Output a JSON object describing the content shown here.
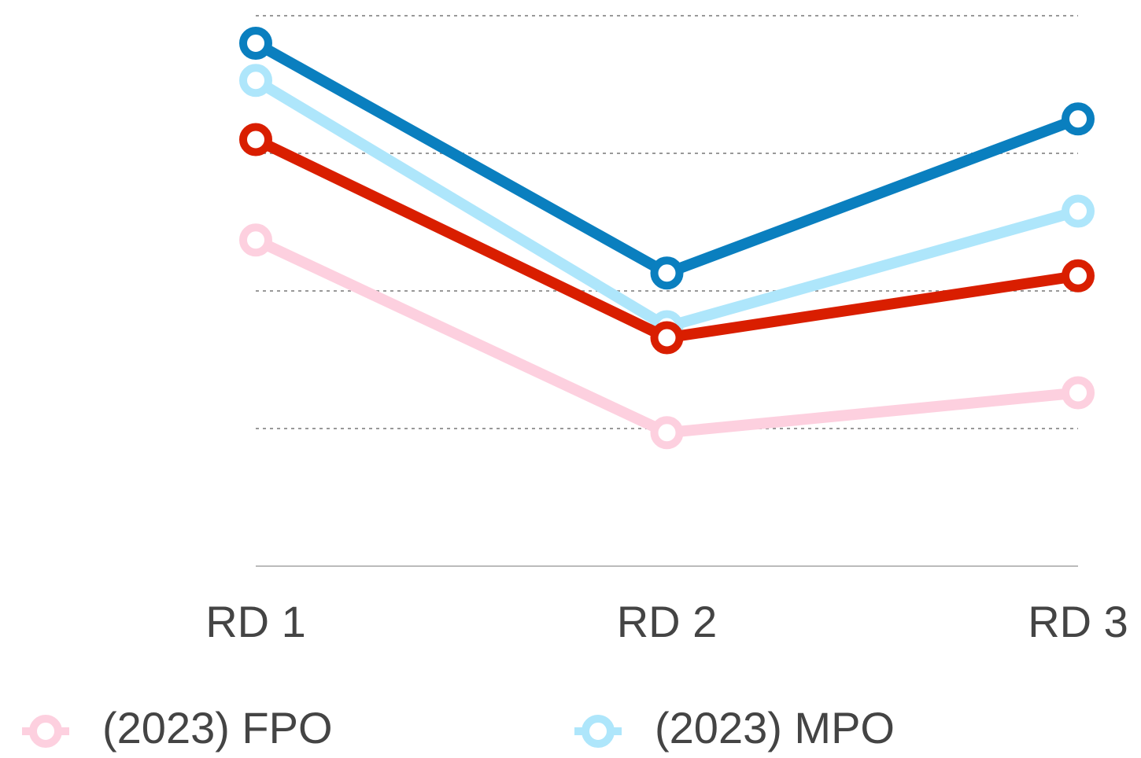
{
  "chart_data": {
    "type": "line",
    "categories": [
      "RD 1",
      "RD 2",
      "RD 3"
    ],
    "series": [
      {
        "name": "(2023) FPO",
        "color": "#fdd0df",
        "values": [
          2.37,
          0.97,
          1.26
        ]
      },
      {
        "name": "(2023) MPO",
        "color": "#aee6fb",
        "values": [
          3.53,
          1.74,
          2.58
        ]
      },
      {
        "color": "#d91e00",
        "values": [
          3.1,
          1.66,
          2.11
        ]
      },
      {
        "color": "#0a7fbf",
        "values": [
          3.8,
          2.13,
          3.25
        ]
      }
    ],
    "ylim": [
      0,
      4
    ],
    "yticks": [
      1,
      2,
      3,
      4
    ],
    "grid": true
  }
}
